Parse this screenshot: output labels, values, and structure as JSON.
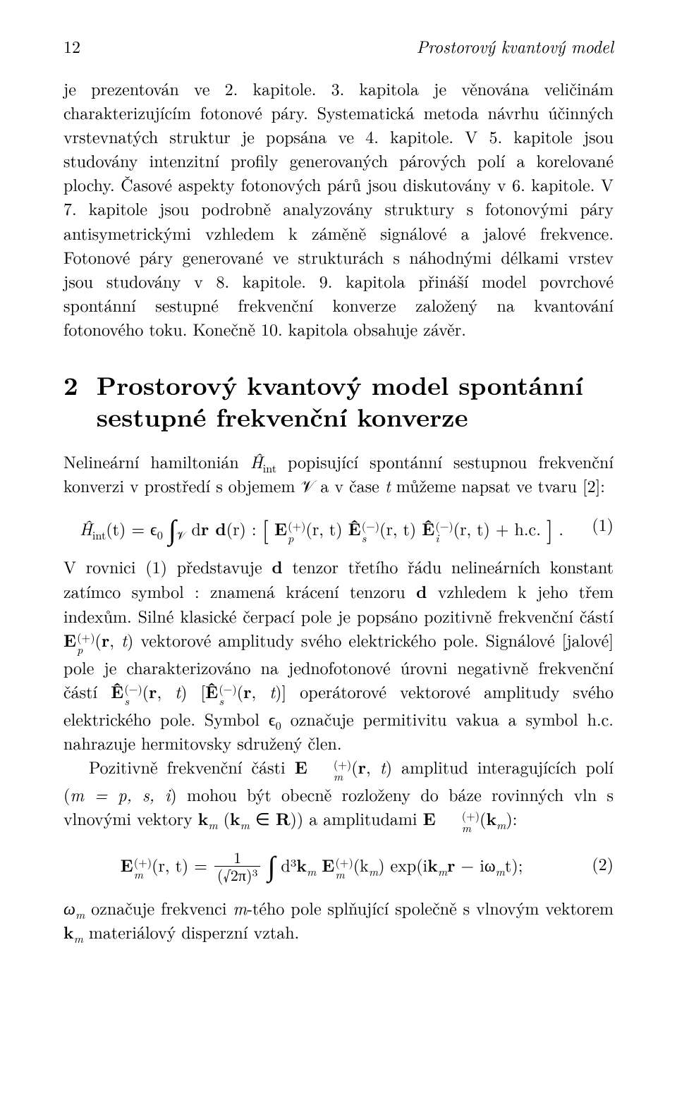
{
  "header": {
    "page_number": "12",
    "running_title": "Prostorový kvantový model"
  },
  "para1": "je prezentován ve 2. kapitole. 3. kapitola je věnována veličinám charakterizujícím fotonové páry. Systematická metoda návrhu účinných vrstevnatých struktur je popsána ve 4. kapitole. V 5. kapitole jsou studovány intenzitní profily generovaných párových polí a korelované plochy. Časové aspekty fotonových párů jsou diskutovány v 6. kapitole. V 7. kapitole jsou podrobně analyzovány struktury s fotonovými páry antisymetrickými vzhledem k záměně signálové a jalové frekvence. Fotonové páry generované ve strukturách s náhodnými délkami vrstev jsou studovány v 8. kapitole. 9. kapitola přináší model povrchové spontánní sestupné frekvenční konverze založený na kvantování fotonového toku. Konečně 10. kapitola obsahuje závěr.",
  "section": {
    "number": "2",
    "title_line1": "Prostorový kvantový model spontánní",
    "title_line2": "sestupné frekvenční konverze"
  },
  "para2_a": "Nelineární hamiltonián ",
  "para2_b": " popisující spontánní sestupnou frekvenční konverzi v prostředí s objemem 𝒱 a v čase ",
  "para2_c": " můžeme napsat ve tvaru [2]:",
  "eq1": {
    "lhs": "Ĥ",
    "lhs_sub": "int",
    "lhs_arg": "(t) = ϵ",
    "eps_sub": "0",
    "int_sub": "𝒱",
    "d_part": " d",
    "r_bold": "r d",
    "rparen": "(r)",
    "colon": " : ",
    "Ep": "E",
    "Ep_supsub_top": "(+)",
    "Ep_supsub_bot": "p",
    "Es": "Ê",
    "Es_supsub_top": "(−)",
    "Es_supsub_bot": "s",
    "Ei": "Ê",
    "Ei_supsub_top": "(−)",
    "Ei_supsub_bot": "i",
    "arg_rt": "(r, t)",
    "tail": " + h.c.",
    "number": "(1)"
  },
  "para3_a": "V rovnici (1) představuje ",
  "para3_b": " tenzor třetího řádu nelineárních konstant zatímco symbol : znamená krácení tenzoru ",
  "para3_c": " vzhledem k jeho třem indexům. Silné klasické čerpací pole je popsáno pozitivně frekvenční částí ",
  "para3_d": " vektorové amplitudy svého elektrického pole. Signálové [jalové] pole je charakterizováno na jednofotonové úrovni negativně frekvenční částí ",
  "para3_e": " operátorové vektorové amplitudy svého elektrického pole. Symbol ϵ",
  "para3_f": " označuje permitivitu vakua a symbol h.c. nahrazuje hermitovsky sdružený člen.",
  "para4_a": "Pozitivně frekvenční části ",
  "para4_b": " amplitud interagujících polí (",
  "para4_c": ") mohou být obecně rozloženy do báze rovinných vln s vlnovými vektory ",
  "para4_d": ") a amplitudami ",
  "para4_e": ":",
  "eq2": {
    "lhs_E": "E",
    "lhs_top": "(+)",
    "lhs_bot": "m",
    "lhs_arg": "(r, t) = ",
    "frac_num": "1",
    "frac_den_l": "(",
    "frac_den_r": ")³",
    "sqrt": "√2π",
    "d3k": " d³",
    "km": "k",
    "km_sub": "m",
    "Ek": "E",
    "Ek_top": "(+)",
    "Ek_bot": "m",
    "arg_k": "(k",
    "arg_k_sub": "m",
    "arg_k_close": ")",
    "exp_a": " exp(i",
    "exp_b": " − iω",
    "exp_c": "t);",
    "number": "(2)"
  },
  "para5_a": "ω",
  "para5_b": " označuje frekvenci ",
  "para5_c": "-tého pole splňující společně s vlnovým vektorem ",
  "para5_d": " materiálový disperzní vztah.",
  "sym": {
    "Hhat_int": "Ĥ",
    "t_it": "t",
    "d_bold": "d",
    "Ep_rt": "E",
    "Es_rt": "Ê",
    "Em_rt": "E",
    "m_list": "m = p, s, i",
    "km_in_R": "k",
    "k_sub_m": "m",
    "inR_a": " (",
    "inR_b": " ∈ ",
    "R_bold": "R",
    "r_bold_low": "r",
    "m_it": "m",
    "zero": "0"
  }
}
